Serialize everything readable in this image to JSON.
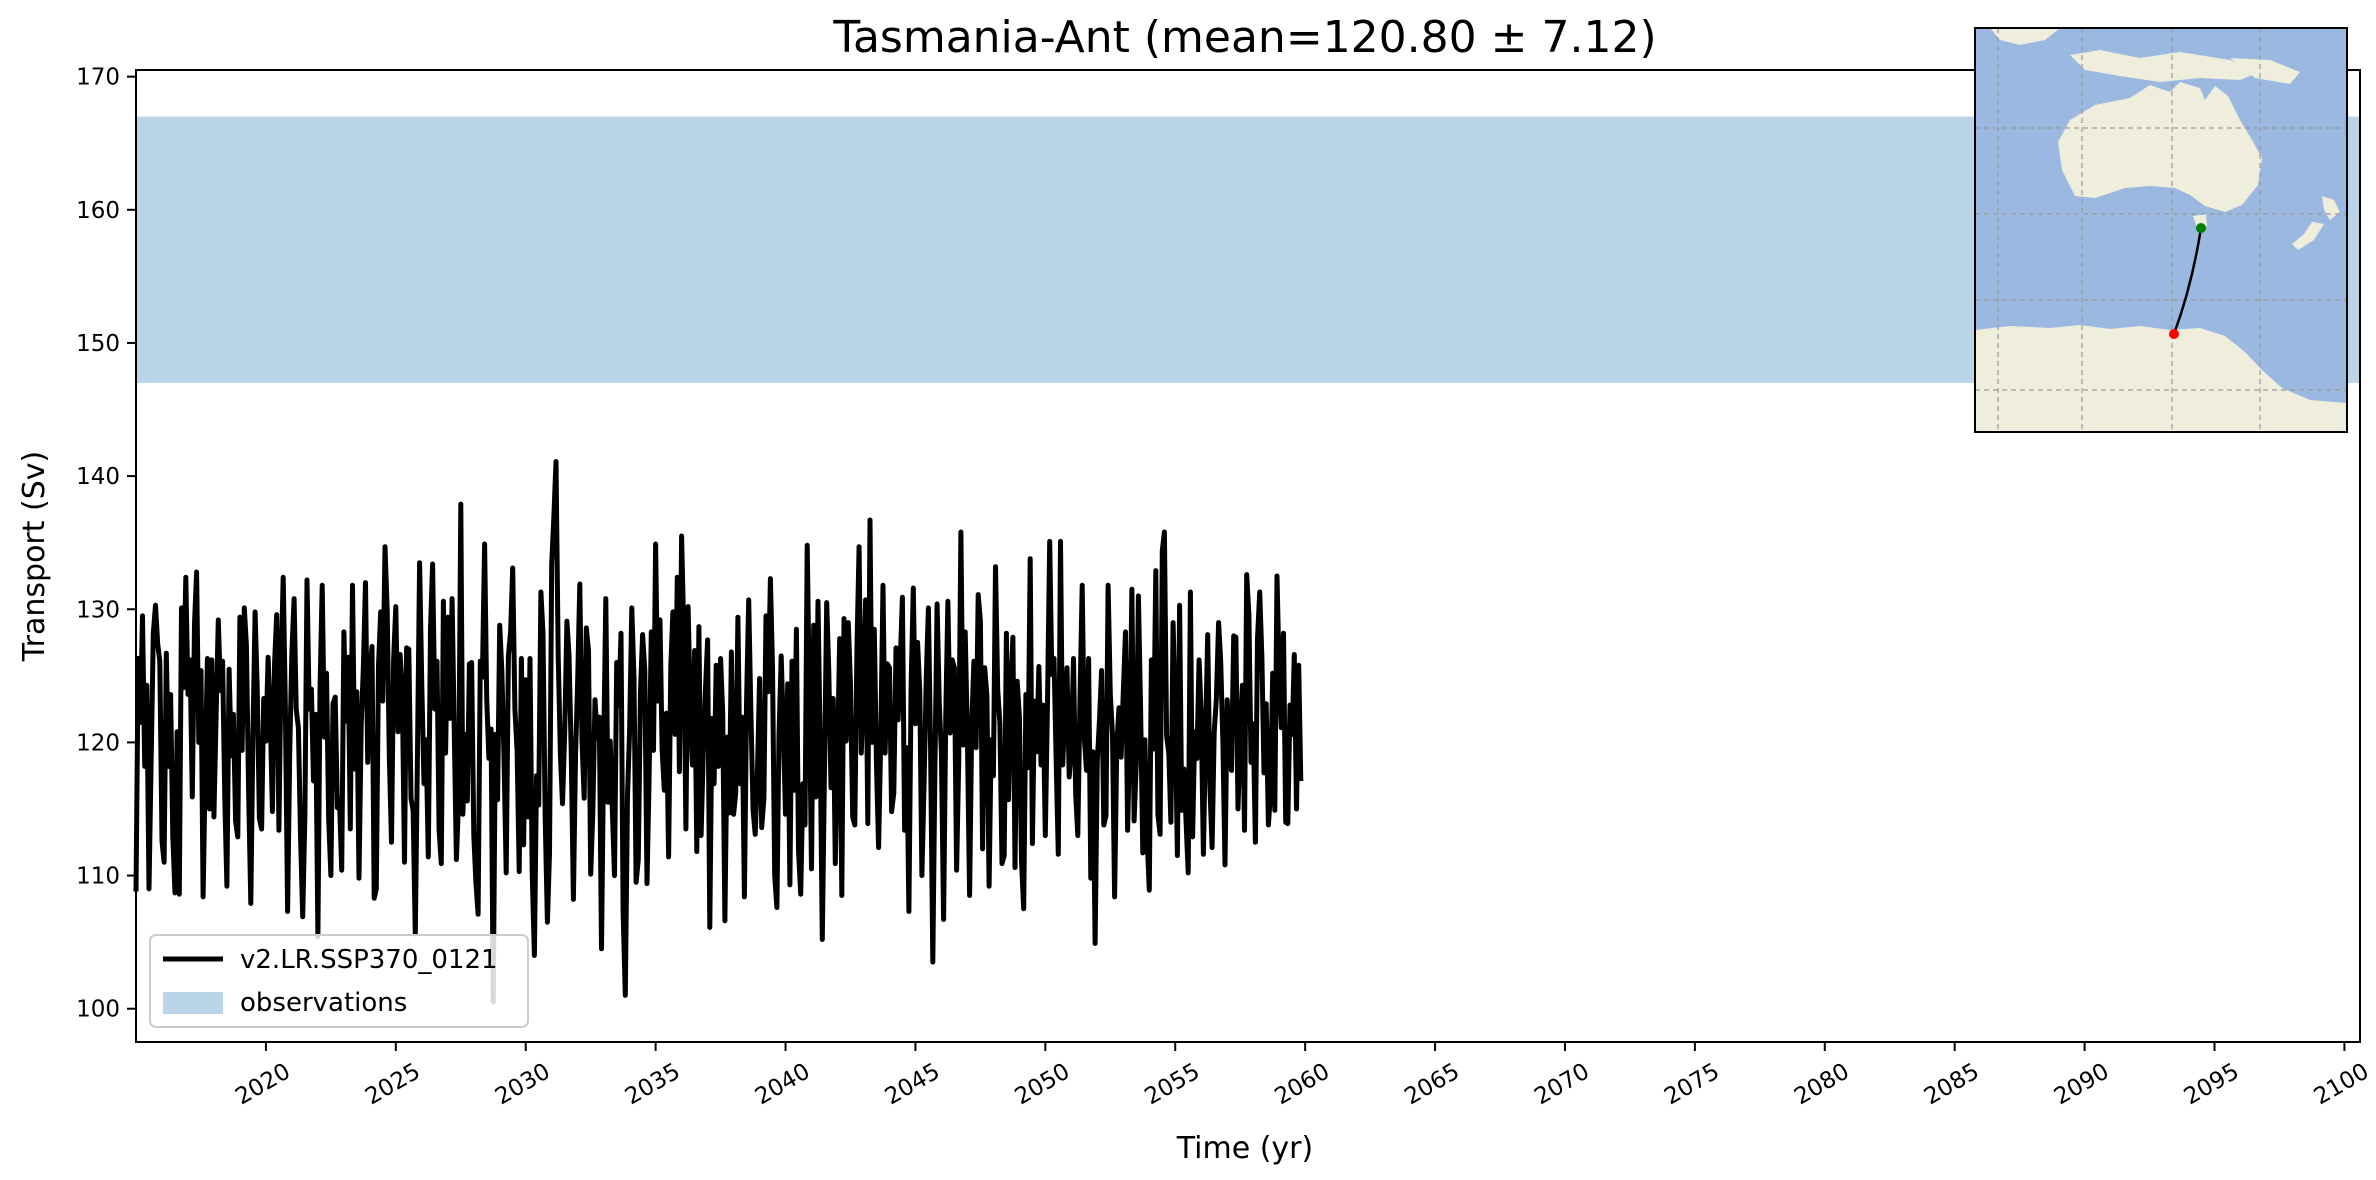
{
  "chart_data": {
    "type": "line",
    "title": "Tasmania-Ant (mean=120.80 ± 7.12)",
    "xlabel": "Time (yr)",
    "ylabel": "Transport (Sv)",
    "xlim": [
      2015.0,
      2100.6
    ],
    "ylim": [
      97.5,
      170.5
    ],
    "xticks": [
      2020,
      2025,
      2030,
      2035,
      2040,
      2045,
      2050,
      2055,
      2060,
      2065,
      2070,
      2075,
      2080,
      2085,
      2090,
      2095,
      2100
    ],
    "yticks": [
      100,
      110,
      120,
      130,
      140,
      150,
      160,
      170
    ],
    "grid": false,
    "legend": {
      "placement": "lower-left",
      "entries": [
        "v2.LR.SSP370_0121",
        "observations"
      ]
    },
    "observations_band": {
      "name": "observations",
      "y_range": [
        147.0,
        167.0
      ],
      "color": "#bad5e8"
    },
    "series": [
      {
        "name": "v2.LR.SSP370_0121",
        "color": "#000000",
        "x_start": 2015.0,
        "x_step": 0.0833333,
        "values": [
          108.8,
          126.3,
          121.5,
          129.5,
          118.2,
          124.3,
          109.0,
          118.9,
          128.2,
          130.3,
          127.4,
          126.1,
          112.6,
          111.0,
          126.7,
          118.2,
          123.6,
          112.9,
          108.7,
          120.8,
          108.6,
          130.1,
          124.1,
          132.4,
          123.6,
          126.2,
          115.9,
          128.9,
          132.8,
          120.0,
          125.4,
          108.4,
          118.2,
          126.3,
          115.0,
          126.2,
          114.4,
          122.0,
          129.2,
          123.9,
          126.1,
          115.8,
          109.2,
          125.5,
          119.0,
          122.1,
          114.1,
          112.9,
          129.4,
          119.4,
          130.1,
          127.3,
          116.4,
          107.9,
          120.5,
          129.8,
          124.1,
          114.3,
          113.5,
          123.3,
          120.1,
          126.4,
          122.2,
          114.8,
          126.0,
          129.6,
          113.4,
          125.9,
          132.4,
          122.5,
          107.3,
          119.2,
          126.8,
          130.8,
          122.5,
          121.1,
          113.1,
          106.9,
          114.5,
          132.2,
          122.5,
          124.0,
          117.1,
          122.1,
          105.4,
          123.9,
          131.8,
          120.4,
          125.2,
          114.2,
          110.0,
          122.9,
          123.4,
          115.1,
          115.7,
          110.4,
          128.3,
          121.6,
          126.4,
          113.5,
          131.8,
          118.0,
          123.8,
          109.8,
          121.3,
          125.5,
          132.0,
          118.5,
          125.1,
          127.2,
          108.3,
          109.0,
          125.8,
          129.8,
          123.1,
          134.7,
          129.9,
          119.0,
          112.5,
          126.2,
          130.2,
          120.8,
          126.6,
          123.8,
          111.0,
          127.1,
          127.0,
          115.8,
          114.9,
          105.6,
          119.4,
          133.5,
          124.3,
          116.9,
          120.2,
          111.4,
          128.5,
          133.4,
          122.5,
          126.1,
          113.4,
          110.9,
          130.6,
          119.2,
          129.4,
          121.8,
          130.8,
          120.6,
          111.2,
          115.7,
          137.9,
          114.6,
          120.6,
          115.6,
          125.9,
          126.0,
          113.0,
          109.5,
          107.1,
          126.1,
          124.9,
          134.9,
          123.3,
          118.8,
          121.0,
          100.5,
          120.6,
          115.7,
          128.8,
          125.3,
          118.5,
          110.2,
          126.5,
          128.3,
          133.1,
          122.5,
          119.4,
          110.3,
          126.3,
          112.3,
          124.7,
          114.4,
          126.3,
          110.2,
          104.0,
          117.5,
          115.3,
          131.3,
          128.2,
          114.3,
          106.5,
          111.7,
          133.4,
          137.0,
          141.1,
          126.5,
          119.1,
          115.4,
          120.7,
          129.1,
          126.6,
          119.4,
          108.2,
          118.9,
          124.7,
          131.9,
          120.1,
          115.8,
          128.6,
          126.9,
          110.1,
          114.7,
          123.2,
          120.3,
          121.9,
          104.5,
          119.7,
          130.8,
          115.5,
          120.1,
          115.0,
          110.0,
          126.0,
          122.8,
          128.2,
          107.3,
          101.0,
          116.0,
          120.9,
          130.1,
          124.8,
          109.5,
          111.2,
          123.9,
          128.1,
          125.4,
          109.4,
          117.4,
          128.3,
          119.4,
          134.9,
          123.1,
          129.2,
          119.5,
          116.4,
          122.2,
          111.4,
          125.7,
          129.8,
          120.6,
          132.4,
          117.8,
          135.5,
          128.3,
          113.5,
          130.2,
          122.4,
          118.3,
          126.9,
          111.8,
          128.7,
          113.0,
          119.3,
          123.9,
          127.7,
          106.1,
          121.8,
          116.9,
          125.8,
          118.2,
          126.3,
          122.2,
          106.6,
          120.4,
          114.7,
          126.8,
          114.6,
          116.2,
          129.4,
          116.9,
          121.9,
          108.4,
          123.2,
          130.7,
          122.2,
          114.9,
          113.1,
          117.6,
          124.8,
          113.6,
          115.8,
          129.5,
          123.8,
          132.3,
          125.7,
          110.0,
          107.6,
          120.5,
          126.5,
          120.8,
          114.6,
          124.4,
          109.3,
          126.1,
          116.4,
          128.5,
          111.9,
          108.6,
          116.9,
          113.8,
          134.8,
          123.8,
          110.5,
          128.8,
          115.9,
          130.6,
          119.8,
          105.2,
          118.0,
          130.5,
          125.3,
          116.6,
          123.3,
          110.9,
          119.0,
          127.8,
          108.5,
          129.3,
          120.1,
          129.0,
          124.3,
          114.4,
          113.8,
          127.3,
          134.7,
          119.2,
          124.7,
          130.7,
          113.9,
          136.7,
          120.0,
          128.5,
          118.2,
          112.1,
          120.5,
          131.8,
          119.2,
          125.9,
          125.6,
          114.8,
          116.2,
          127.1,
          121.7,
          126.2,
          130.9,
          113.4,
          119.6,
          107.3,
          124.2,
          131.6,
          121.4,
          127.5,
          123.8,
          110.0,
          117.0,
          125.0,
          130.1,
          119.4,
          103.5,
          117.9,
          130.4,
          122.9,
          119.2,
          106.7,
          122.2,
          130.6,
          120.7,
          126.2,
          125.6,
          110.4,
          118.5,
          135.8,
          119.8,
          128.3,
          120.4,
          108.5,
          121.3,
          126.1,
          119.6,
          131.1,
          129.1,
          112.0,
          125.6,
          123.5,
          109.2,
          120.2,
          117.5,
          133.2,
          124.0,
          121.4,
          110.9,
          111.5,
          128.2,
          115.7,
          123.8,
          127.9,
          110.6,
          124.6,
          121.9,
          111.1,
          107.5,
          123.6,
          118.1,
          133.8,
          112.4,
          123.1,
          119.3,
          125.7,
          118.3,
          122.8,
          113.0,
          123.0,
          135.1,
          125.1,
          126.3,
          118.5,
          111.6,
          135.1,
          118.3,
          122.2,
          125.6,
          117.4,
          119.4,
          126.3,
          116.1,
          113.0,
          123.3,
          131.8,
          120.3,
          117.9,
          126.3,
          109.8,
          119.3,
          104.9,
          118.6,
          121.7,
          125.4,
          113.8,
          114.5,
          131.8,
          123.6,
          120.6,
          108.4,
          119.8,
          122.6,
          118.9,
          123.8,
          128.3,
          113.4,
          120.4,
          131.5,
          114.1,
          118.5,
          131.0,
          122.5,
          111.7,
          120.2,
          112.8,
          108.9,
          126.2,
          119.5,
          132.9,
          114.6,
          113.1,
          134.4,
          135.8,
          120.5,
          119.2,
          114.0,
          129.0,
          121.9,
          111.5,
          130.3,
          114.9,
          118.0,
          114.0,
          110.2,
          131.3,
          112.9,
          120.8,
          118.8,
          126.2,
          122.1,
          111.6,
          120.7,
          128.1,
          116.7,
          112.1,
          120.8,
          123.3,
          129.0,
          126.1,
          120.0,
          110.8,
          123.2,
          119.3,
          117.9,
          128.0,
          127.9,
          115.0,
          120.6,
          124.3,
          113.4,
          132.6,
          129.6,
          118.5,
          121.4,
          112.5,
          127.8,
          131.3,
          126.4,
          117.7,
          122.9,
          113.8,
          116.2,
          125.2,
          114.9,
          132.5,
          125.1,
          121.1,
          128.2,
          114.0,
          113.9,
          122.8,
          120.6,
          126.6,
          115.0,
          125.8,
          117.1
        ]
      }
    ]
  },
  "inset_map": {
    "land_color": "#efeedc",
    "ocean_color": "#9bb8e1",
    "line_color": "#000000",
    "start_marker_color": "#008000",
    "end_marker_color": "#ff0000"
  }
}
